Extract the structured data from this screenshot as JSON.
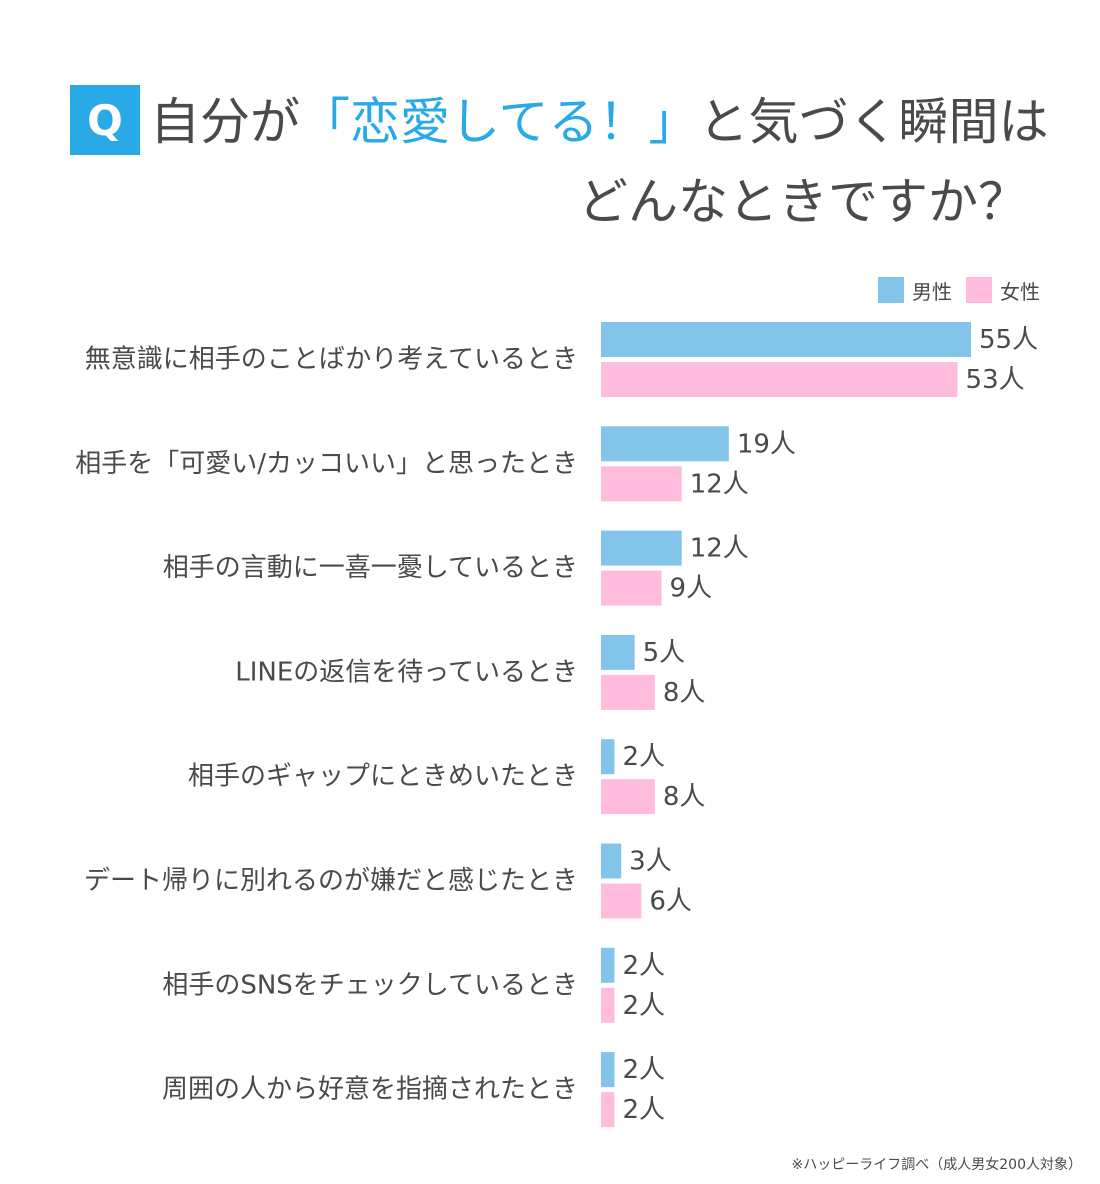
{
  "title": {
    "badge": "Q",
    "line1_prefix": "自分が",
    "line1_accent": "「恋愛してる！」",
    "line1_suffix": "と気づく瞬間は",
    "line2": "どんなときですか？"
  },
  "colors": {
    "accent": "#29a9e6",
    "male": "#82c4ea",
    "female": "#ffbcdc",
    "text": "#4a4a4a"
  },
  "footnote": "※ハッピーライフ調べ（成人男女200人対象）",
  "chart_data": {
    "type": "bar",
    "orientation": "horizontal",
    "unit": "人",
    "legend": "top-right",
    "categories": [
      "無意識に相手のことばかり考えているとき",
      "相手を「可愛い/カッコいい」と思ったとき",
      "相手の言動に一喜一憂しているとき",
      "LINEの返信を待っているとき",
      "相手のギャップにときめいたとき",
      "デート帰りに別れるのが嫌だと感じたとき",
      "相手のSNSをチェックしているとき",
      "周囲の人から好意を指摘されたとき"
    ],
    "series": [
      {
        "name": "男性",
        "color": "#82c4ea",
        "values": [
          55,
          19,
          12,
          5,
          2,
          3,
          2,
          2
        ]
      },
      {
        "name": "女性",
        "color": "#ffbcdc",
        "values": [
          53,
          12,
          9,
          8,
          8,
          6,
          2,
          2
        ]
      }
    ],
    "xlim": [
      0,
      60
    ],
    "grid": false
  }
}
